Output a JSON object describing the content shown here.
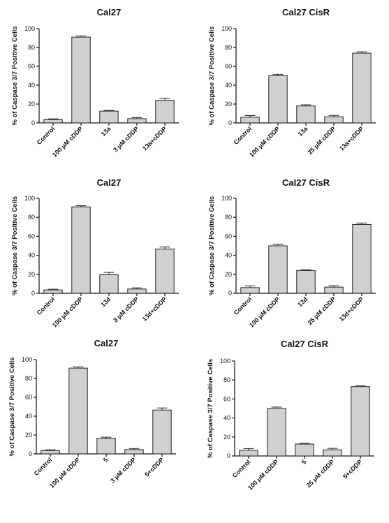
{
  "chart_data": [
    {
      "type": "bar",
      "title": "Cal27",
      "ylabel": "% of Caspase 3/7 Positive Cells",
      "ylim": [
        0,
        100
      ],
      "yticks": [
        0,
        20,
        40,
        60,
        80,
        100
      ],
      "categories": [
        "Control",
        "100 μM cDDP",
        "13a",
        "3 μM cDDP",
        "13a+cDDP"
      ],
      "values": [
        3.5,
        91,
        12.5,
        4.5,
        24
      ],
      "errors": [
        0.8,
        1.2,
        0.8,
        1.2,
        1.8
      ],
      "bar_color": "#d0d0d0"
    },
    {
      "type": "bar",
      "title": "Cal27 CisR",
      "ylabel": "% of Caspase 3/7 Positive Cells",
      "ylim": [
        0,
        100
      ],
      "yticks": [
        0,
        20,
        40,
        60,
        80,
        100
      ],
      "categories": [
        "Control",
        "100 μM cDDP",
        "13a",
        "25 μM cDDP",
        "13a+cDDP"
      ],
      "values": [
        6,
        50,
        18,
        6.5,
        74
      ],
      "errors": [
        1.8,
        1.5,
        1.2,
        1.5,
        1.5
      ],
      "bar_color": "#d0d0d0"
    },
    {
      "type": "bar",
      "title": "Cal27",
      "ylabel": "% of Caspase 3/7 Positive Cells",
      "ylim": [
        0,
        100
      ],
      "yticks": [
        0,
        20,
        40,
        60,
        80,
        100
      ],
      "categories": [
        "Control",
        "100 μM cDDP",
        "13d",
        "3 μM cDDP",
        "13d+cDDP"
      ],
      "values": [
        3.5,
        91,
        19.5,
        4.5,
        46.5
      ],
      "errors": [
        0.8,
        1.2,
        2.5,
        1.2,
        2.2
      ],
      "bar_color": "#d0d0d0"
    },
    {
      "type": "bar",
      "title": "Cal27 CisR",
      "ylabel": "% of Caspase 3/7 Positive Cells",
      "ylim": [
        0,
        100
      ],
      "yticks": [
        0,
        20,
        40,
        60,
        80,
        100
      ],
      "categories": [
        "Control",
        "100 μM cDDP",
        "13d",
        "25 μM cDDP",
        "13d+cDDP"
      ],
      "values": [
        6,
        50,
        24,
        6.5,
        72.5
      ],
      "errors": [
        1.8,
        1.5,
        0.8,
        1.5,
        1.5
      ],
      "bar_color": "#d0d0d0"
    },
    {
      "type": "bar",
      "title": "Cal27",
      "ylabel": "% of Caspase 3/7 Positive Cells",
      "ylim": [
        0,
        100
      ],
      "yticks": [
        0,
        20,
        40,
        60,
        80,
        100
      ],
      "categories": [
        "Control",
        "100 μM cDDP",
        "5",
        "3 μM cDDP",
        "5+cDDP"
      ],
      "values": [
        3.5,
        91,
        16.5,
        4.5,
        46.5
      ],
      "errors": [
        0.8,
        1.2,
        1.2,
        1.2,
        2.2
      ],
      "bar_color": "#d0d0d0"
    },
    {
      "type": "bar",
      "title": "Cal27 CisR",
      "ylabel": "% of Caspase 3/7 Positive Cells",
      "ylim": [
        0,
        100
      ],
      "yticks": [
        0,
        20,
        40,
        60,
        80,
        100
      ],
      "categories": [
        "Control",
        "100 μM cDDP",
        "5",
        "25 μM cDDP",
        "5+cDDP"
      ],
      "values": [
        6,
        50,
        12.5,
        6.5,
        73
      ],
      "errors": [
        1.8,
        1.5,
        0.8,
        1.5,
        0.8
      ],
      "bar_color": "#d0d0d0"
    }
  ]
}
